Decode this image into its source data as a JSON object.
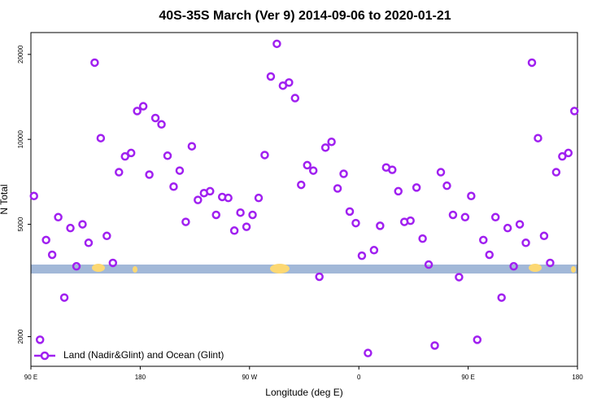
{
  "chart_data": {
    "type": "scatter",
    "title": "40S-35S March (Ver 9)   2014-09-06 to 2020-01-21",
    "x_label": "Longitude (deg E)",
    "y_label": "N Total",
    "xlim": [
      90,
      540
    ],
    "xticks": [
      {
        "value": 90,
        "label": "90 E"
      },
      180,
      {
        "value": 270,
        "label": "90 W"
      },
      {
        "value": 360,
        "label": "0"
      },
      {
        "value": 450,
        "label": "90 E"
      },
      {
        "value": 540,
        "label": "180"
      }
    ],
    "ylim": [
      1570,
      23900
    ],
    "yticks": [
      2000,
      5000,
      10000,
      20000
    ],
    "log_y": true,
    "legend": "bottom-left",
    "x": [
      92.5,
      97.5,
      102.5,
      107.5,
      112.5,
      117.5,
      122.5,
      127.5,
      132.5,
      137.5,
      142.5,
      147.5,
      152.5,
      157.5,
      162.5,
      167.5,
      172.5,
      177.5,
      182.5,
      187.5,
      192.5,
      197.5,
      202.5,
      207.5,
      212.5,
      217.5,
      222.5,
      227.5,
      232.5,
      237.5,
      242.5,
      247.5,
      252.5,
      257.5,
      262.5,
      267.5,
      272.5,
      277.5,
      282.5,
      287.5,
      292.5,
      297.5,
      302.5,
      307.5,
      312.5,
      317.5,
      322.5,
      327.5,
      332.5,
      337.5,
      342.5,
      347.5,
      352.5,
      357.5,
      362.5,
      367.5,
      372.5,
      377.5,
      382.5,
      387.5,
      392.5,
      397.5,
      402.5,
      407.5,
      412.5,
      417.5,
      422.5,
      427.5,
      432.5,
      437.5,
      442.5,
      447.5,
      452.5,
      457.5,
      462.5,
      467.5,
      472.5,
      477.5,
      482.5,
      487.5,
      492.5,
      497.5,
      502.5,
      507.5,
      512.5,
      517.5,
      522.5,
      527.5,
      532.5,
      537.5
    ],
    "series": [
      {
        "name": "Land (Nadir&Glint) and Ocean (Glint)",
        "color": "#a020f0",
        "values": [
          6300,
          1950,
          4400,
          3900,
          5300,
          2750,
          4850,
          3550,
          5000,
          4300,
          18700,
          10100,
          4550,
          3650,
          7650,
          8700,
          8950,
          12600,
          13100,
          7500,
          11900,
          11300,
          8750,
          6800,
          7750,
          5100,
          9450,
          6100,
          6450,
          6550,
          5400,
          6250,
          6200,
          4750,
          5500,
          4900,
          5400,
          6200,
          8800,
          16700,
          21800,
          15500,
          15900,
          14000,
          6900,
          8100,
          7750,
          3260,
          9350,
          9800,
          6700,
          7550,
          5550,
          5050,
          3870,
          1750,
          4050,
          4940,
          7950,
          7800,
          6550,
          5100,
          5150,
          6750,
          4450,
          3600,
          1860,
          7650,
          6850,
          5400,
          3250,
          5300,
          6300,
          1950,
          4400,
          3900,
          5300,
          2750,
          4850,
          3550,
          5000,
          4300,
          18700,
          10100,
          4550,
          3650,
          7650,
          8700,
          8950,
          12600
        ]
      }
    ]
  }
}
